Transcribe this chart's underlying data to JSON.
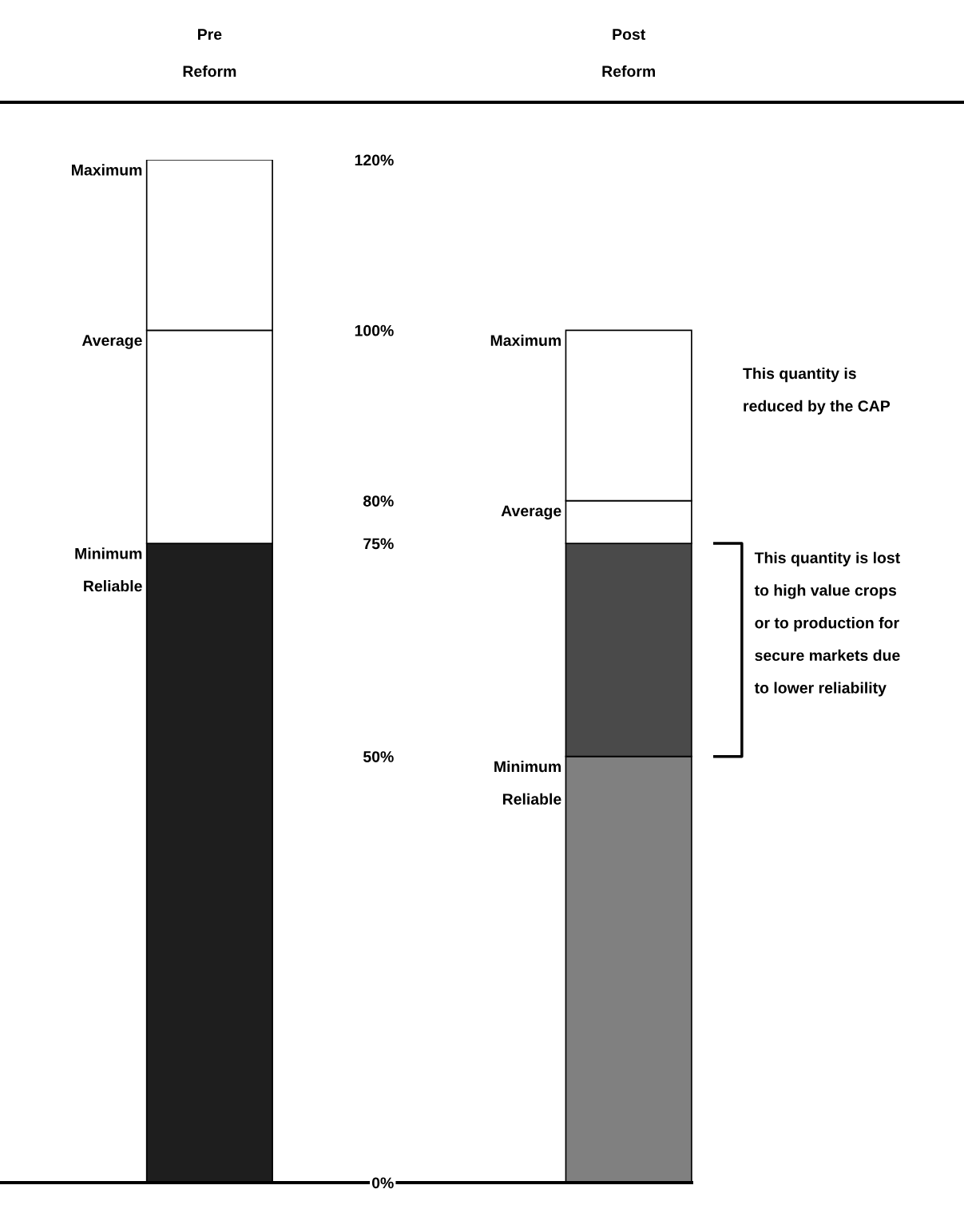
{
  "chart_data": {
    "type": "bar",
    "stacked": true,
    "categories": [
      "Pre\nReform",
      "Post\nReform"
    ],
    "series": [
      {
        "colors": [
          "#1e1e1e",
          "#808080"
        ],
        "values": [
          75,
          50
        ]
      },
      {
        "colors": [
          "#4a4a4a",
          "#4a4a4a"
        ],
        "values": [
          null,
          25
        ]
      },
      {
        "colors": [
          "#ffffff",
          "#ffffff"
        ],
        "values": [
          25,
          5
        ]
      },
      {
        "colors": [
          "#ffffff",
          "#ffffff"
        ],
        "values": [
          20,
          20
        ]
      }
    ],
    "ylim": [
      0,
      120
    ],
    "yticks": [
      {
        "value": 0,
        "label": "0%"
      },
      {
        "value": 50,
        "label": "50%"
      },
      {
        "value": 75,
        "label": "75%"
      },
      {
        "value": 80,
        "label": "80%"
      },
      {
        "value": 100,
        "label": "100%"
      },
      {
        "value": 120,
        "label": "120%"
      }
    ],
    "grid": false,
    "legend": false,
    "annotations": [
      "Maximum",
      "Average",
      "Minimum\nReliable",
      "Maximum",
      "Average",
      "Minimum\nReliable",
      "This quantity is\nreduced by the CAP",
      "This quantity is lost\nto high value crops\nor to production for\nsecure markets due\nto lower reliability"
    ]
  }
}
